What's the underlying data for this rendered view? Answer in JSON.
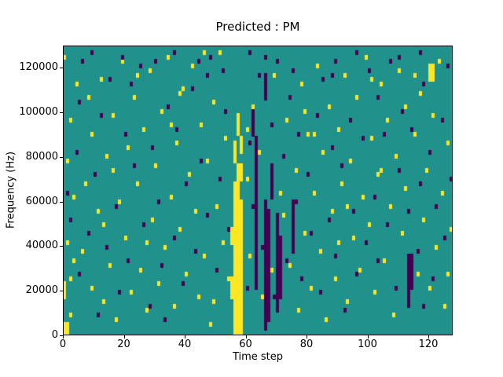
{
  "chart_data": {
    "type": "heatmap",
    "title": "Predicted : PM",
    "xlabel": "Time step",
    "ylabel": "Frequency (Hz)",
    "xlim": [
      0,
      128
    ],
    "ylim": [
      0,
      130000
    ],
    "x_ticks": [
      0,
      20,
      40,
      60,
      80,
      100,
      120
    ],
    "y_ticks": [
      0,
      20000,
      40000,
      60000,
      80000,
      100000,
      120000
    ],
    "grid_cols": 128,
    "grid_rows": 64,
    "legend_position": "none",
    "grid": false,
    "colors": {
      "low": "#440154",
      "mid": "#21918c",
      "high": "#fde725"
    },
    "value_levels": {
      "low": -1,
      "mid": 0,
      "high": 1
    },
    "bands": [
      [
        56,
        0,
        3,
        30,
        1
      ],
      [
        55,
        8,
        1,
        5,
        1
      ],
      [
        55,
        20,
        1,
        4,
        1
      ],
      [
        56,
        30,
        2,
        4,
        1
      ],
      [
        57,
        34,
        2,
        4,
        1
      ],
      [
        56,
        38,
        1,
        5,
        1
      ],
      [
        58,
        40,
        1,
        4,
        1
      ],
      [
        57,
        44,
        1,
        4,
        1
      ],
      [
        63,
        10,
        1,
        34,
        -1
      ],
      [
        62,
        44,
        1,
        6,
        -1
      ],
      [
        66,
        1,
        1,
        29,
        -1
      ],
      [
        67,
        3,
        1,
        25,
        -1
      ],
      [
        70,
        5,
        1,
        22,
        -1
      ],
      [
        71,
        8,
        1,
        14,
        -1
      ],
      [
        68,
        30,
        1,
        8,
        -1
      ],
      [
        75,
        18,
        1,
        12,
        -1
      ],
      [
        113,
        6,
        1,
        12,
        -1
      ],
      [
        114,
        10,
        1,
        8,
        -1
      ],
      [
        66,
        52,
        1,
        6,
        -1
      ],
      [
        120,
        56,
        2,
        4,
        1
      ],
      [
        0,
        0,
        2,
        3,
        1
      ],
      [
        0,
        8,
        1,
        4,
        1
      ]
    ],
    "cells": {
      "yellow": [
        [
          2,
          4
        ],
        [
          2,
          12
        ],
        [
          1,
          20
        ],
        [
          0,
          9
        ],
        [
          3,
          30
        ],
        [
          1,
          38
        ],
        [
          2,
          47
        ],
        [
          4,
          55
        ],
        [
          0,
          61
        ],
        [
          6,
          18
        ],
        [
          7,
          33
        ],
        [
          9,
          10
        ],
        [
          9,
          44
        ],
        [
          11,
          27
        ],
        [
          12,
          56
        ],
        [
          13,
          7
        ],
        [
          14,
          39
        ],
        [
          15,
          15
        ],
        [
          16,
          48
        ],
        [
          17,
          3
        ],
        [
          18,
          29
        ],
        [
          19,
          60
        ],
        [
          20,
          21
        ],
        [
          21,
          41
        ],
        [
          22,
          9
        ],
        [
          23,
          52
        ],
        [
          24,
          33
        ],
        [
          25,
          14
        ],
        [
          26,
          45
        ],
        [
          27,
          5
        ],
        [
          28,
          58
        ],
        [
          29,
          25
        ],
        [
          30,
          37
        ],
        [
          31,
          11
        ],
        [
          32,
          49
        ],
        [
          33,
          19
        ],
        [
          34,
          61
        ],
        [
          35,
          30
        ],
        [
          36,
          6
        ],
        [
          37,
          42
        ],
        [
          38,
          23
        ],
        [
          39,
          54
        ],
        [
          40,
          13
        ],
        [
          41,
          35
        ],
        [
          42,
          59
        ],
        [
          43,
          27
        ],
        [
          44,
          8
        ],
        [
          45,
          46
        ],
        [
          46,
          17
        ],
        [
          47,
          38
        ],
        [
          48,
          2
        ],
        [
          49,
          51
        ],
        [
          50,
          28
        ],
        [
          51,
          62
        ],
        [
          52,
          20
        ],
        [
          53,
          43
        ],
        [
          54,
          12
        ],
        [
          60,
          34
        ],
        [
          61,
          17
        ],
        [
          62,
          50
        ],
        [
          64,
          40
        ],
        [
          65,
          8
        ],
        [
          69,
          57
        ],
        [
          72,
          26
        ],
        [
          73,
          47
        ],
        [
          74,
          15
        ],
        [
          76,
          36
        ],
        [
          77,
          5
        ],
        [
          78,
          55
        ],
        [
          79,
          22
        ],
        [
          80,
          44
        ],
        [
          81,
          10
        ],
        [
          82,
          31
        ],
        [
          83,
          59
        ],
        [
          84,
          18
        ],
        [
          85,
          40
        ],
        [
          86,
          3
        ],
        [
          87,
          50
        ],
        [
          88,
          27
        ],
        [
          89,
          12
        ],
        [
          90,
          45
        ],
        [
          91,
          33
        ],
        [
          92,
          57
        ],
        [
          93,
          7
        ],
        [
          94,
          38
        ],
        [
          95,
          21
        ],
        [
          96,
          52
        ],
        [
          97,
          14
        ],
        [
          98,
          30
        ],
        [
          99,
          61
        ],
        [
          100,
          24
        ],
        [
          101,
          43
        ],
        [
          102,
          9
        ],
        [
          103,
          35
        ],
        [
          104,
          55
        ],
        [
          105,
          16
        ],
        [
          106,
          47
        ],
        [
          107,
          28
        ],
        [
          108,
          4
        ],
        [
          109,
          39
        ],
        [
          110,
          58
        ],
        [
          111,
          22
        ],
        [
          112,
          32
        ],
        [
          115,
          44
        ],
        [
          116,
          13
        ],
        [
          117,
          53
        ],
        [
          118,
          25
        ],
        [
          119,
          36
        ],
        [
          120,
          10
        ],
        [
          121,
          48
        ],
        [
          122,
          19
        ],
        [
          123,
          60
        ],
        [
          124,
          31
        ],
        [
          125,
          6
        ],
        [
          126,
          42
        ],
        [
          127,
          23
        ],
        [
          3,
          16
        ],
        [
          8,
          52
        ],
        [
          13,
          24
        ],
        [
          24,
          57
        ],
        [
          35,
          46
        ],
        [
          46,
          62
        ],
        [
          57,
          48
        ],
        [
          68,
          14
        ],
        [
          79,
          49
        ],
        [
          90,
          20
        ],
        [
          101,
          56
        ],
        [
          112,
          50
        ],
        [
          16,
          36
        ],
        [
          27,
          20
        ],
        [
          38,
          53
        ],
        [
          49,
          7
        ],
        [
          60,
          45
        ],
        [
          71,
          31
        ],
        [
          82,
          44
        ],
        [
          93,
          28
        ],
        [
          104,
          36
        ],
        [
          115,
          57
        ],
        [
          126,
          13
        ]
      ],
      "purple": [
        [
          1,
          31
        ],
        [
          2,
          25
        ],
        [
          4,
          40
        ],
        [
          5,
          13
        ],
        [
          6,
          60
        ],
        [
          8,
          22
        ],
        [
          10,
          35
        ],
        [
          11,
          4
        ],
        [
          12,
          48
        ],
        [
          14,
          19
        ],
        [
          15,
          56
        ],
        [
          17,
          28
        ],
        [
          18,
          9
        ],
        [
          20,
          44
        ],
        [
          21,
          16
        ],
        [
          23,
          37
        ],
        [
          25,
          59
        ],
        [
          26,
          24
        ],
        [
          28,
          6
        ],
        [
          29,
          41
        ],
        [
          31,
          29
        ],
        [
          32,
          15
        ],
        [
          34,
          50
        ],
        [
          36,
          21
        ],
        [
          37,
          45
        ],
        [
          39,
          11
        ],
        [
          40,
          33
        ],
        [
          42,
          54
        ],
        [
          43,
          18
        ],
        [
          45,
          38
        ],
        [
          47,
          26
        ],
        [
          48,
          61
        ],
        [
          50,
          14
        ],
        [
          51,
          34
        ],
        [
          53,
          49
        ],
        [
          54,
          23
        ],
        [
          60,
          10
        ],
        [
          61,
          42
        ],
        [
          62,
          28
        ],
        [
          64,
          57
        ],
        [
          65,
          19
        ],
        [
          68,
          46
        ],
        [
          69,
          8
        ],
        [
          72,
          39
        ],
        [
          73,
          16
        ],
        [
          74,
          52
        ],
        [
          76,
          29
        ],
        [
          77,
          44
        ],
        [
          78,
          12
        ],
        [
          80,
          35
        ],
        [
          81,
          22
        ],
        [
          83,
          48
        ],
        [
          84,
          9
        ],
        [
          85,
          56
        ],
        [
          87,
          25
        ],
        [
          88,
          41
        ],
        [
          89,
          17
        ],
        [
          91,
          37
        ],
        [
          92,
          5
        ],
        [
          94,
          47
        ],
        [
          95,
          27
        ],
        [
          96,
          13
        ],
        [
          98,
          43
        ],
        [
          99,
          20
        ],
        [
          100,
          58
        ],
        [
          102,
          30
        ],
        [
          103,
          16
        ],
        [
          105,
          44
        ],
        [
          106,
          24
        ],
        [
          107,
          60
        ],
        [
          109,
          10
        ],
        [
          110,
          36
        ],
        [
          111,
          49
        ],
        [
          113,
          27
        ],
        [
          114,
          45
        ],
        [
          116,
          18
        ],
        [
          117,
          33
        ],
        [
          118,
          55
        ],
        [
          120,
          40
        ],
        [
          121,
          12
        ],
        [
          122,
          28
        ],
        [
          124,
          47
        ],
        [
          125,
          21
        ],
        [
          126,
          59
        ],
        [
          127,
          34
        ],
        [
          5,
          51
        ],
        [
          19,
          61
        ],
        [
          33,
          3
        ],
        [
          47,
          57
        ],
        [
          61,
          62
        ],
        [
          75,
          58
        ],
        [
          89,
          60
        ],
        [
          103,
          52
        ],
        [
          117,
          62
        ],
        [
          9,
          62
        ],
        [
          30,
          60
        ],
        [
          52,
          58
        ],
        [
          96,
          62
        ],
        [
          44,
          60
        ],
        [
          66,
          61
        ],
        [
          88,
          57
        ],
        [
          110,
          61
        ],
        [
          22,
          55
        ],
        [
          70,
          60
        ],
        [
          118,
          6
        ],
        [
          36,
          62
        ]
      ]
    }
  }
}
